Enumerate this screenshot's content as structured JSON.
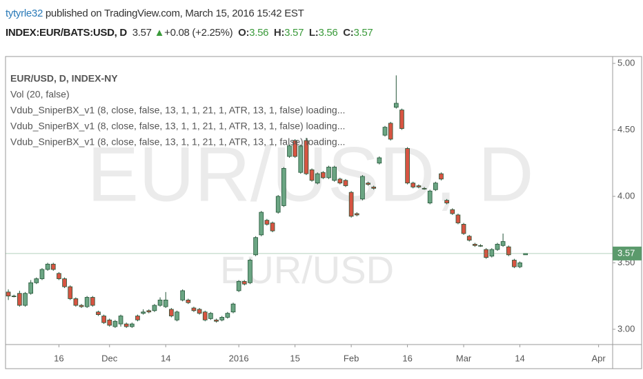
{
  "header": {
    "author": "tytyrle32",
    "published": "published on TradingView.com, March 15, 2016 15:42 EST",
    "symbol": "INDEX:EUR/BATS:USD, D",
    "price": 3.57,
    "change": "+0.08 (+2.25%)",
    "o_label": "O:",
    "open": 3.56,
    "h_label": "H:",
    "high": 3.57,
    "l_label": "L:",
    "low": 3.56,
    "c_label": "C:",
    "close": 3.57
  },
  "chart_data": {
    "type": "candlestick",
    "legend_lines": [
      "EUR/USD, D, INDEX-NY",
      "Vol (20, false)",
      "Vdub_SniperBX_v1 (8, close, false, 13, 1, 1, 21, 1, ATR, 13, 1, false) loading...",
      "Vdub_SniperBX_v1 (8, close, false, 13, 1, 1, 21, 1, ATR, 13, 1, false) loading...",
      "Vdub_SniperBX_v1 (8, close, false, 13, 1, 1, 21, 1, ATR, 13, 1, false) loading..."
    ],
    "watermark": "EUR/USD, D",
    "watermark_small": "EUR/USD",
    "up_color": "#6ba583",
    "down_color": "#d75442",
    "border_color": "#225437",
    "last_price_color": "#5b9a6c",
    "last_price": 3.57,
    "categories": [
      null,
      null,
      null,
      null,
      null,
      null,
      null,
      null,
      null,
      "16",
      null,
      null,
      null,
      null,
      null,
      null,
      null,
      null,
      "Dec",
      null,
      null,
      null,
      null,
      null,
      null,
      null,
      null,
      null,
      "14",
      null,
      null,
      null,
      null,
      null,
      null,
      null,
      null,
      null,
      null,
      null,
      null,
      "2016",
      null,
      null,
      null,
      null,
      null,
      null,
      null,
      null,
      null,
      "15",
      null,
      null,
      null,
      null,
      null,
      null,
      null,
      null,
      null,
      "Feb",
      null,
      null,
      null,
      null,
      null,
      null,
      null,
      null,
      null,
      "16",
      null,
      null,
      null,
      null,
      null,
      null,
      null,
      null,
      null,
      "Mar",
      null,
      null,
      null,
      null,
      null,
      null,
      null,
      null,
      null,
      "14",
      null,
      null,
      null,
      null,
      null,
      null,
      null,
      null,
      null,
      null,
      null,
      null,
      null,
      "Apr",
      null,
      null
    ],
    "open": [
      3.28,
      3.25,
      3.27,
      3.18,
      3.27,
      3.35,
      3.38,
      3.45,
      3.49,
      3.42,
      3.38,
      3.32,
      3.23,
      3.18,
      3.17,
      3.24,
      3.13,
      3.1,
      3.07,
      3.02,
      3.04,
      3.04,
      3.02,
      3.1,
      3.12,
      3.14,
      3.14,
      3.18,
      3.17,
      3.15,
      3.07,
      3.22,
      3.22,
      3.16,
      3.15,
      3.13,
      3.08,
      3.07,
      3.07,
      3.09,
      3.13,
      3.29,
      3.36,
      3.35,
      3.56,
      3.71,
      3.82,
      3.8,
      3.88,
      3.93,
      4.3,
      4.42,
      4.18,
      4.42,
      4.2,
      4.1,
      4.18,
      4.14,
      4.12,
      4.13,
      4.12,
      4.03,
      3.87,
      3.98,
      4.1,
      4.07,
      4.25,
      4.46,
      4.55,
      4.67,
      4.65,
      4.36,
      4.1,
      4.08,
      4.06,
      3.95,
      4.05,
      4.17,
      3.97,
      3.9,
      3.86,
      3.79,
      3.7,
      3.64,
      3.63,
      3.6,
      3.55,
      3.6,
      3.63,
      3.62,
      3.52,
      3.47,
      3.56,
      null,
      null,
      null,
      null,
      null,
      null,
      null,
      null,
      null,
      null,
      null,
      null,
      null,
      null,
      null
    ],
    "high": [
      3.3,
      3.26,
      3.29,
      3.28,
      3.37,
      3.39,
      3.46,
      3.5,
      3.5,
      3.43,
      3.39,
      3.33,
      3.24,
      3.19,
      3.25,
      3.25,
      3.14,
      3.11,
      3.08,
      3.07,
      3.11,
      3.05,
      3.05,
      3.11,
      3.15,
      3.15,
      3.19,
      3.24,
      3.28,
      3.16,
      3.14,
      3.3,
      3.23,
      3.17,
      3.16,
      3.14,
      3.13,
      3.08,
      3.1,
      3.13,
      3.2,
      3.37,
      3.37,
      3.53,
      3.7,
      3.89,
      3.83,
      3.81,
      4.01,
      4.22,
      4.39,
      4.43,
      4.39,
      4.44,
      4.21,
      4.18,
      4.19,
      4.23,
      4.23,
      4.14,
      4.13,
      4.04,
      3.88,
      4.16,
      4.11,
      4.08,
      4.3,
      4.53,
      4.56,
      4.91,
      4.66,
      4.37,
      4.11,
      4.09,
      4.07,
      4.05,
      4.11,
      4.18,
      3.98,
      3.91,
      3.87,
      3.8,
      3.71,
      3.65,
      3.64,
      3.61,
      3.61,
      3.65,
      3.72,
      3.63,
      3.53,
      3.51,
      3.57,
      null,
      null,
      null,
      null,
      null,
      null,
      null,
      null,
      null,
      null,
      null,
      null,
      null,
      null,
      null
    ],
    "low": [
      3.22,
      3.24,
      3.17,
      3.17,
      3.26,
      3.34,
      3.37,
      3.44,
      3.44,
      3.37,
      3.31,
      3.22,
      3.17,
      3.16,
      3.16,
      3.17,
      3.1,
      3.04,
      3.02,
      3.01,
      3.02,
      3.01,
      3.01,
      3.06,
      3.11,
      3.12,
      3.13,
      3.17,
      3.16,
      3.09,
      3.06,
      3.21,
      3.19,
      3.13,
      3.11,
      3.06,
      3.07,
      3.05,
      3.06,
      3.08,
      3.12,
      3.28,
      3.33,
      3.34,
      3.55,
      3.7,
      3.78,
      3.73,
      3.87,
      3.92,
      4.29,
      4.29,
      4.17,
      4.16,
      4.11,
      4.09,
      4.13,
      4.13,
      4.11,
      4.09,
      4.07,
      3.84,
      3.85,
      3.97,
      4.08,
      4.05,
      4.24,
      4.45,
      4.42,
      4.66,
      4.5,
      4.09,
      4.06,
      4.06,
      4.05,
      3.94,
      4.04,
      4.12,
      3.94,
      3.86,
      3.79,
      3.71,
      3.66,
      3.62,
      3.62,
      3.53,
      3.54,
      3.59,
      3.62,
      3.55,
      3.46,
      3.46,
      3.56,
      null,
      null,
      null,
      null,
      null,
      null,
      null,
      null,
      null,
      null,
      null,
      null,
      null,
      null,
      null
    ],
    "close": [
      3.25,
      3.25,
      3.18,
      3.27,
      3.35,
      3.38,
      3.45,
      3.49,
      3.45,
      3.38,
      3.32,
      3.23,
      3.18,
      3.17,
      3.24,
      3.18,
      3.11,
      3.05,
      3.03,
      3.06,
      3.1,
      3.02,
      3.04,
      3.07,
      3.13,
      3.13,
      3.18,
      3.22,
      3.22,
      3.1,
      3.13,
      3.29,
      3.2,
      3.14,
      3.12,
      3.07,
      3.12,
      3.06,
      3.09,
      3.12,
      3.19,
      3.36,
      3.34,
      3.52,
      3.69,
      3.88,
      3.79,
      3.74,
      4.0,
      4.21,
      4.38,
      4.3,
      4.38,
      4.17,
      4.12,
      4.17,
      4.14,
      4.22,
      4.22,
      4.1,
      4.08,
      3.85,
      3.86,
      4.15,
      4.09,
      4.06,
      4.29,
      4.52,
      4.43,
      4.7,
      4.51,
      4.1,
      4.07,
      4.07,
      4.06,
      4.04,
      4.1,
      4.13,
      3.95,
      3.87,
      3.8,
      3.72,
      3.67,
      3.63,
      3.63,
      3.54,
      3.6,
      3.64,
      3.66,
      3.56,
      3.47,
      3.5,
      3.57,
      null,
      null,
      null,
      null,
      null,
      null,
      null,
      null,
      null,
      null,
      null,
      null,
      null,
      null,
      null
    ],
    "ylim": [
      2.885,
      5.052
    ],
    "yticks": [
      {
        "value": 3,
        "label": "3.00"
      },
      {
        "value": 3.5,
        "label": "3.50"
      },
      {
        "value": 4,
        "label": "4.00"
      },
      {
        "value": 4.5,
        "label": "4.50"
      },
      {
        "value": 5,
        "label": "5.00"
      }
    ]
  }
}
